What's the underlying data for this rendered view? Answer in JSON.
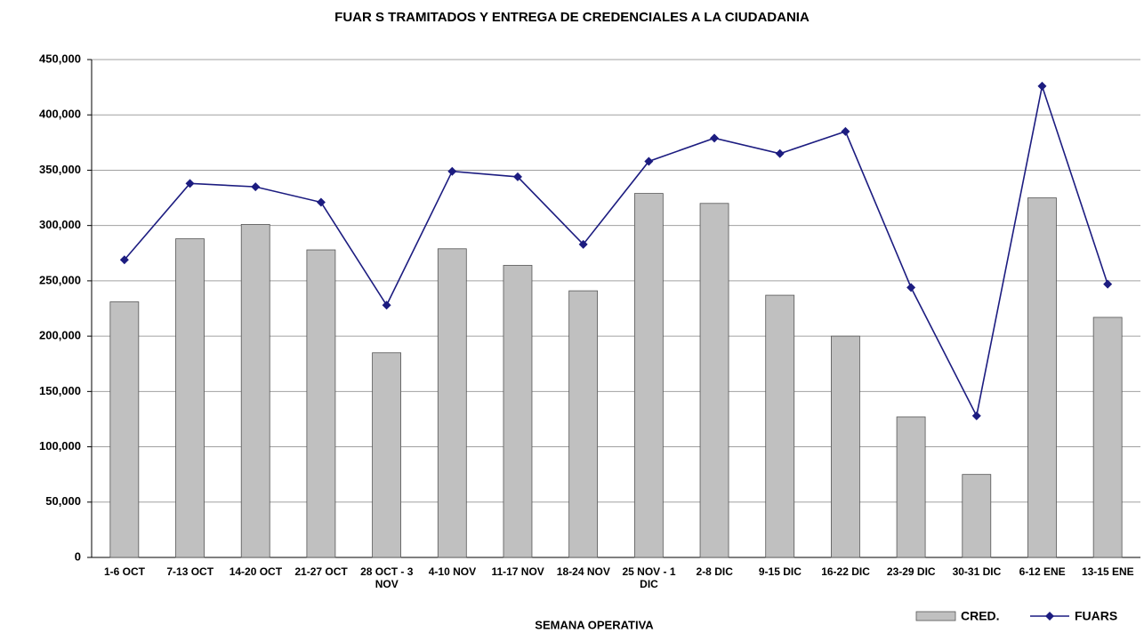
{
  "chart_data": {
    "type": "bar-line",
    "title": "FUAR S TRAMITADOS Y ENTREGA DE CREDENCIALES A LA CIUDADANIA",
    "x_label": "SEMANA  OPERATIVA",
    "categories": [
      "1-6 OCT",
      "7-13 OCT",
      "14-20 OCT",
      "21-27 OCT",
      "28 OCT - 3 NOV",
      "4-10 NOV",
      "11-17 NOV",
      "18-24 NOV",
      "25 NOV - 1 DIC",
      "2-8 DIC",
      "9-15 DIC",
      "16-22 DIC",
      "23-29 DIC",
      "30-31 DIC",
      "6-12 ENE",
      "13-15 ENE"
    ],
    "series": [
      {
        "name": "CRED.",
        "type": "bar",
        "color": "#c0c0c0",
        "values": [
          231000,
          288000,
          301000,
          278000,
          185000,
          279000,
          264000,
          241000,
          329000,
          320000,
          237000,
          200000,
          127000,
          75000,
          325000,
          217000
        ]
      },
      {
        "name": "FUARS",
        "type": "line",
        "color": "#1c1c80",
        "values": [
          269000,
          338000,
          335000,
          321000,
          228000,
          349000,
          344000,
          283000,
          358000,
          379000,
          365000,
          385000,
          244000,
          128000,
          426000,
          247000
        ]
      }
    ],
    "ylim": [
      0,
      450000
    ],
    "yticks": [
      0,
      {
        "value": 50000,
        "label": "50,000"
      },
      {
        "value": 100000,
        "label": "100,000"
      },
      {
        "value": 150000,
        "label": "150,000"
      },
      {
        "value": 200000,
        "label": "200,000"
      },
      {
        "value": 250000,
        "label": "250,000"
      },
      {
        "value": 300000,
        "label": "300,000"
      },
      {
        "value": 350000,
        "label": "350,000"
      },
      {
        "value": 400000,
        "label": "400,000"
      },
      {
        "value": 450000,
        "label": "450,000"
      }
    ],
    "grid": true,
    "legend": "bottom-right"
  }
}
